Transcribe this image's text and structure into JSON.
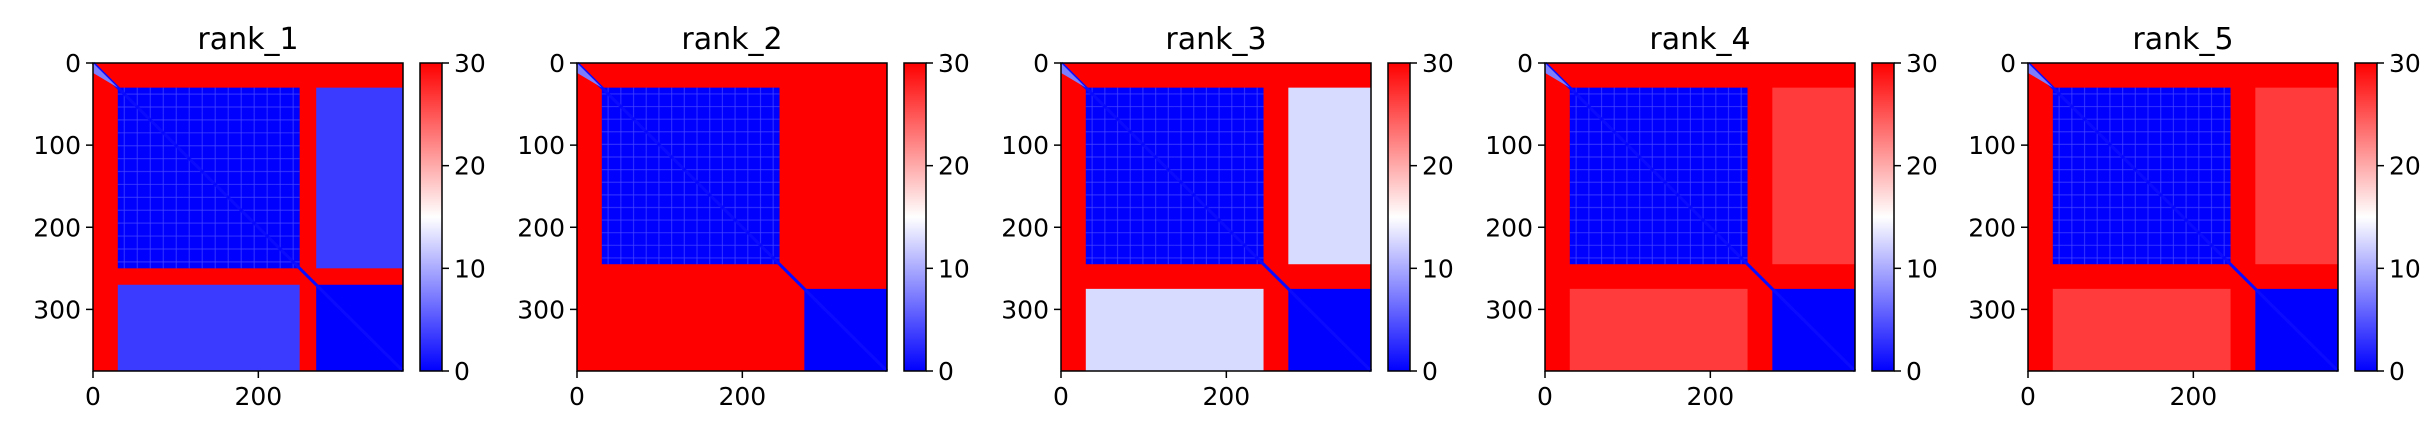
{
  "colors": {
    "low": "#0000ff",
    "mid": "#ffffff",
    "high": "#ff0000"
  },
  "chart_data": [
    {
      "type": "heatmap",
      "title": "rank_1",
      "xlabel": "",
      "ylabel": "",
      "x_ticks": [
        0,
        200
      ],
      "y_ticks": [
        0,
        100,
        200,
        300
      ],
      "xlim": [
        0,
        375
      ],
      "ylim": [
        375,
        0
      ],
      "colorbar": {
        "ticks": [
          0,
          10,
          20,
          30
        ],
        "range": [
          0,
          30
        ],
        "cmap": "bwr"
      },
      "domain_boundaries": [
        30,
        250,
        270
      ],
      "off_diagonal_level": "high"
    },
    {
      "type": "heatmap",
      "title": "rank_2",
      "xlabel": "",
      "ylabel": "",
      "x_ticks": [
        0,
        200
      ],
      "y_ticks": [
        0,
        100,
        200,
        300
      ],
      "xlim": [
        0,
        375
      ],
      "ylim": [
        375,
        0
      ],
      "colorbar": {
        "ticks": [
          0,
          10,
          20,
          30
        ],
        "range": [
          0,
          30
        ],
        "cmap": "bwr"
      },
      "domain_boundaries": [
        30,
        245,
        275
      ],
      "off_diagonal_level": "high"
    },
    {
      "type": "heatmap",
      "title": "rank_3",
      "xlabel": "",
      "ylabel": "",
      "x_ticks": [
        0,
        200
      ],
      "y_ticks": [
        0,
        100,
        200,
        300
      ],
      "xlim": [
        0,
        375
      ],
      "ylim": [
        375,
        0
      ],
      "colorbar": {
        "ticks": [
          0,
          10,
          20,
          30
        ],
        "range": [
          0,
          30
        ],
        "cmap": "bwr"
      },
      "domain_boundaries": [
        30,
        245,
        275
      ],
      "off_diagonal_level": "mid"
    },
    {
      "type": "heatmap",
      "title": "rank_4",
      "xlabel": "",
      "ylabel": "",
      "x_ticks": [
        0,
        200
      ],
      "y_ticks": [
        0,
        100,
        200,
        300
      ],
      "xlim": [
        0,
        375
      ],
      "ylim": [
        375,
        0
      ],
      "colorbar": {
        "ticks": [
          0,
          10,
          20,
          30
        ],
        "range": [
          0,
          30
        ],
        "cmap": "bwr"
      },
      "domain_boundaries": [
        30,
        245,
        275
      ],
      "off_diagonal_level": "high-light"
    },
    {
      "type": "heatmap",
      "title": "rank_5",
      "xlabel": "",
      "ylabel": "",
      "x_ticks": [
        0,
        200
      ],
      "y_ticks": [
        0,
        100,
        200,
        300
      ],
      "xlim": [
        0,
        375
      ],
      "ylim": [
        375,
        0
      ],
      "colorbar": {
        "ticks": [
          0,
          10,
          20,
          30
        ],
        "range": [
          0,
          30
        ],
        "cmap": "bwr"
      },
      "domain_boundaries": [
        30,
        245,
        275
      ],
      "off_diagonal_level": "high-light"
    }
  ]
}
